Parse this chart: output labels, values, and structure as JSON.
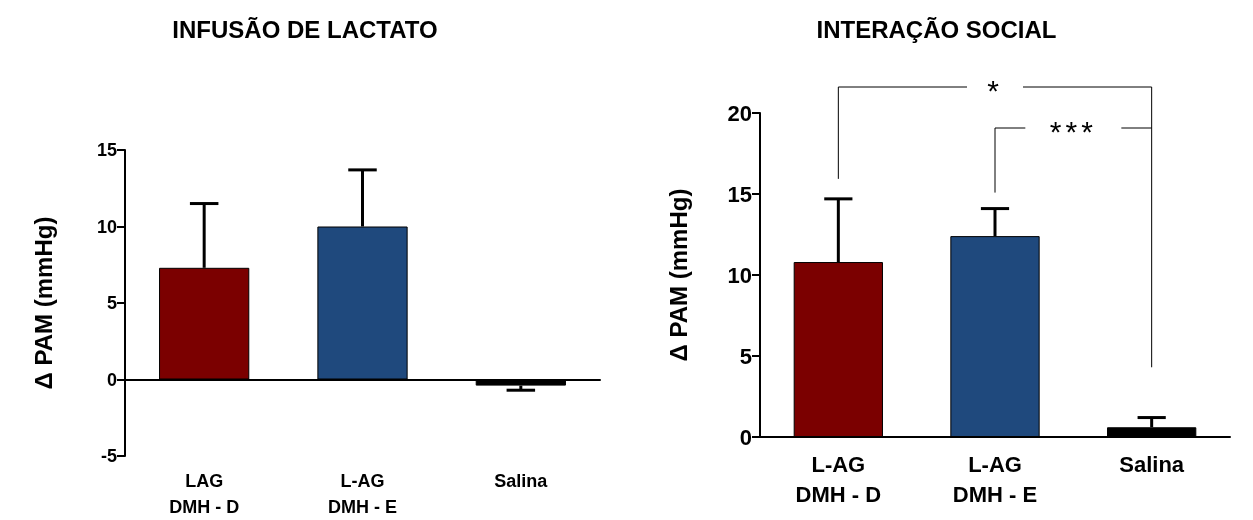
{
  "chart_data": [
    {
      "type": "bar",
      "title": "INFUSÃO DE LACTATO",
      "ylabel": "Δ PAM (mmHg)",
      "categories": [
        "LAG\nDMH - D",
        "L-AG\nDMH - E",
        "Salina"
      ],
      "values": [
        7.3,
        10,
        -0.4
      ],
      "colors": [
        "#7b0000",
        "#1f497d",
        "#000000"
      ],
      "errors": [
        [
          7.3,
          11.5
        ],
        [
          10,
          13.7
        ],
        [
          -0.7,
          -0.4
        ]
      ],
      "ylim": [
        -5,
        15
      ],
      "yticks": [
        -5,
        0,
        5,
        10,
        15
      ]
    },
    {
      "type": "bar",
      "title": "INTERAÇÃO SOCIAL",
      "ylabel": "Δ PAM (mmHg)",
      "categories": [
        "L-AG\nDMH - D",
        "L-AG\nDMH - E",
        "Salina"
      ],
      "values": [
        10.8,
        12.4,
        0.6
      ],
      "colors": [
        "#7b0000",
        "#1f497d",
        "#000000"
      ],
      "errors": [
        [
          10.8,
          14.7
        ],
        [
          12.4,
          14.1
        ],
        [
          0.6,
          1.2
        ]
      ],
      "ylim": [
        0,
        20
      ],
      "yticks": [
        0,
        5,
        10,
        15,
        20
      ],
      "annotations": [
        "*",
        "***"
      ]
    }
  ]
}
